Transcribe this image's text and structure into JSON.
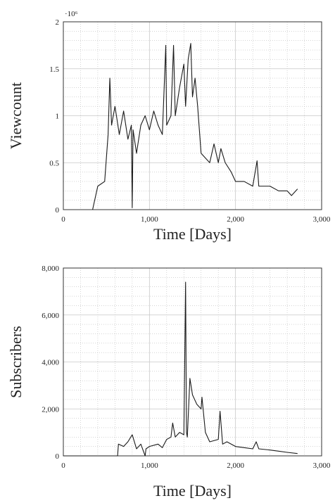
{
  "chart_data": [
    {
      "type": "line",
      "ylabel": "Viewcount",
      "xlabel": "Time [Days]",
      "y_multiplier": "·10⁶",
      "color": "#1a1a1a",
      "grid": true,
      "minor_grid": true,
      "xlim": [
        0,
        3000
      ],
      "xticks": [
        0,
        {
          "value": 1000,
          "label": "1,000"
        },
        {
          "value": 2000,
          "label": "2,000"
        },
        {
          "value": 3000,
          "label": "3,000"
        }
      ],
      "ylim": [
        0,
        2
      ],
      "yticks": [
        0,
        0.5,
        1,
        1.5,
        2
      ],
      "x": [
        340,
        400,
        480,
        520,
        540,
        560,
        600,
        650,
        700,
        750,
        790,
        800,
        810,
        850,
        900,
        950,
        1000,
        1050,
        1100,
        1150,
        1190,
        1200,
        1250,
        1280,
        1300,
        1350,
        1400,
        1420,
        1450,
        1480,
        1500,
        1530,
        1560,
        1600,
        1650,
        1700,
        1750,
        1800,
        1830,
        1880,
        1950,
        2000,
        2100,
        2200,
        2250,
        2270,
        2400,
        2500,
        2600,
        2650,
        2720
      ],
      "values": [
        0,
        0.25,
        0.3,
        0.8,
        1.4,
        0.9,
        1.1,
        0.8,
        1.05,
        0.75,
        0.9,
        0.02,
        0.85,
        0.6,
        0.9,
        1.0,
        0.85,
        1.05,
        0.9,
        0.8,
        1.75,
        0.9,
        1.0,
        1.75,
        1.0,
        1.3,
        1.55,
        1.1,
        1.6,
        1.77,
        1.2,
        1.4,
        1.1,
        0.6,
        0.55,
        0.5,
        0.7,
        0.5,
        0.65,
        0.5,
        0.4,
        0.3,
        0.3,
        0.25,
        0.52,
        0.25,
        0.25,
        0.2,
        0.2,
        0.15,
        0.22
      ]
    },
    {
      "type": "line",
      "ylabel": "Subscribers",
      "xlabel": "Time [Days]",
      "color": "#1a1a1a",
      "grid": true,
      "minor_grid": true,
      "xlim": [
        0,
        3000
      ],
      "xticks": [
        0,
        {
          "value": 1000,
          "label": "1,000"
        },
        {
          "value": 2000,
          "label": "2,000"
        },
        {
          "value": 3000,
          "label": "3,000"
        }
      ],
      "ylim": [
        0,
        8000
      ],
      "yticks": [
        0,
        {
          "value": 2000,
          "label": "2,000"
        },
        {
          "value": 4000,
          "label": "4,000"
        },
        {
          "value": 6000,
          "label": "6,000"
        },
        {
          "value": 8000,
          "label": "8,000"
        }
      ],
      "x": [
        0,
        630,
        640,
        700,
        750,
        800,
        850,
        900,
        950,
        960,
        1000,
        1100,
        1150,
        1200,
        1250,
        1270,
        1300,
        1350,
        1400,
        1420,
        1430,
        1440,
        1470,
        1500,
        1550,
        1600,
        1610,
        1650,
        1700,
        1800,
        1820,
        1850,
        1900,
        2000,
        2100,
        2200,
        2240,
        2270,
        2400,
        2500,
        2600,
        2720
      ],
      "values": [
        0,
        0,
        500,
        400,
        600,
        900,
        300,
        500,
        0,
        300,
        400,
        500,
        350,
        700,
        800,
        1400,
        800,
        1000,
        900,
        7400,
        1000,
        800,
        3300,
        2600,
        2200,
        2000,
        2500,
        1000,
        600,
        700,
        1900,
        500,
        600,
        400,
        350,
        300,
        600,
        300,
        250,
        200,
        150,
        100
      ]
    }
  ]
}
